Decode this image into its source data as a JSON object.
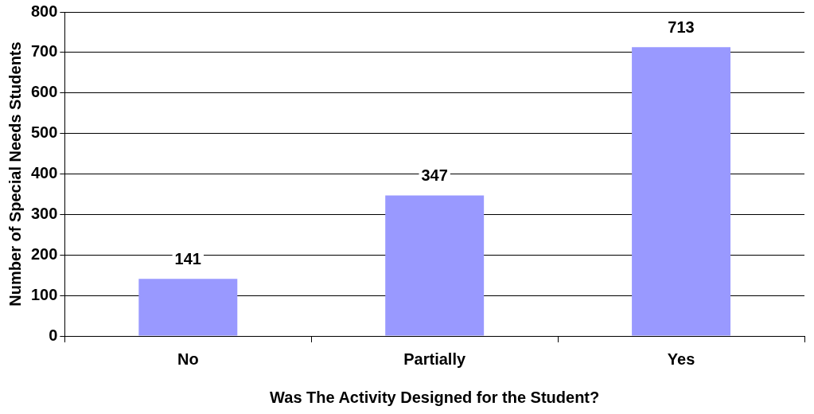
{
  "chart_data": {
    "type": "bar",
    "xlabel": "Was The Activity Designed for the Student?",
    "ylabel": "Number of Special Needs Students",
    "categories": [
      "No",
      "Partially",
      "Yes"
    ],
    "values": [
      141,
      347,
      713
    ],
    "color": "#9999ff",
    "ylim": [
      0,
      800
    ],
    "yticks": [
      0,
      100,
      200,
      300,
      400,
      500,
      600,
      700,
      800
    ],
    "grid": "y",
    "data_labels": true,
    "legend": false
  }
}
